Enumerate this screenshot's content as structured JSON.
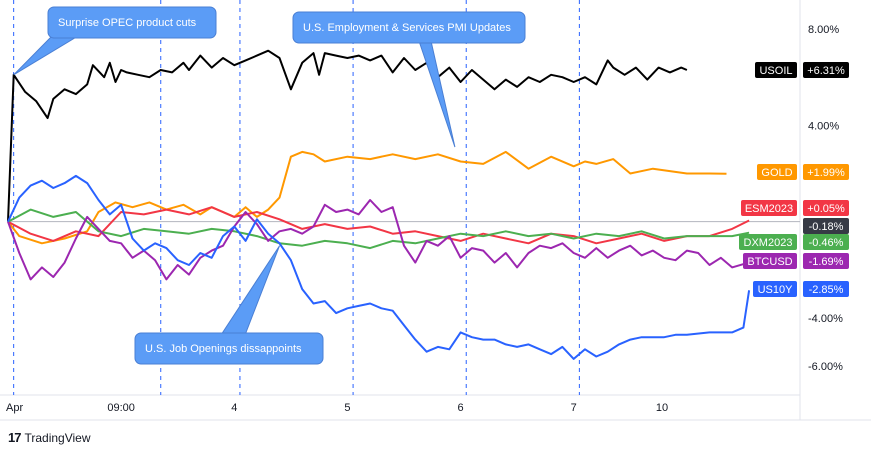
{
  "chart_data": {
    "type": "line",
    "x_axis": {
      "tick_labels": [
        "Apr",
        "09:00",
        "4",
        "5",
        "6",
        "7",
        "10"
      ],
      "range": [
        0,
        7
      ]
    },
    "y_axis": {
      "unit": "%",
      "tick_labels": [
        "8.00%",
        "4.00%",
        "-4.00%",
        "-6.00%"
      ],
      "tick_values": [
        8,
        4,
        -4,
        -6
      ],
      "range": [
        -7.2,
        9.0
      ]
    },
    "zero_line": true,
    "series": [
      {
        "name": "USOIL",
        "color": "#000000",
        "last_value": "+6.31%",
        "x": [
          0,
          0.05,
          0.15,
          0.25,
          0.35,
          0.4,
          0.5,
          0.6,
          0.7,
          0.75,
          0.85,
          0.9,
          0.95,
          1.0,
          1.05,
          1.15,
          1.25,
          1.35,
          1.45,
          1.5,
          1.55,
          1.6,
          1.7,
          1.8,
          1.9,
          2.0,
          2.1,
          2.2,
          2.3,
          2.4,
          2.5,
          2.6,
          2.7,
          2.75,
          2.8,
          2.9,
          3.0,
          3.1,
          3.2,
          3.3,
          3.4,
          3.5,
          3.6,
          3.7,
          3.8,
          3.9,
          4.0,
          4.1,
          4.2,
          4.3,
          4.4,
          4.5,
          4.6,
          4.7,
          4.8,
          4.9,
          5.0,
          5.1,
          5.2,
          5.3,
          5.35,
          5.45,
          5.55,
          5.65,
          5.75,
          5.85,
          5.95,
          6.0
        ],
        "y": [
          0,
          6.1,
          5.4,
          5.0,
          4.3,
          5.1,
          5.5,
          5.3,
          5.7,
          6.5,
          6.0,
          6.6,
          5.8,
          6.3,
          6.2,
          6.1,
          6.0,
          6.3,
          6.2,
          6.4,
          6.6,
          6.3,
          6.9,
          6.4,
          6.8,
          6.5,
          6.7,
          6.9,
          7.1,
          6.8,
          5.5,
          6.6,
          7.0,
          6.1,
          7.0,
          6.9,
          6.8,
          6.9,
          6.7,
          6.9,
          6.2,
          6.8,
          6.3,
          6.6,
          6.0,
          6.4,
          5.8,
          6.3,
          5.9,
          5.5,
          5.9,
          5.6,
          6.0,
          5.8,
          6.1,
          6.0,
          5.8,
          6.0,
          5.7,
          6.7,
          6.4,
          6.1,
          6.4,
          5.9,
          6.4,
          6.2,
          6.4,
          6.3
        ]
      },
      {
        "name": "GOLD",
        "color": "#FF9800",
        "last_value": "+1.99%",
        "x": [
          0,
          0.1,
          0.3,
          0.5,
          0.7,
          0.8,
          0.95,
          1.1,
          1.25,
          1.4,
          1.55,
          1.7,
          1.8,
          1.9,
          2.0,
          2.1,
          2.2,
          2.3,
          2.4,
          2.5,
          2.6,
          2.7,
          2.8,
          3.0,
          3.2,
          3.4,
          3.6,
          3.8,
          4.0,
          4.2,
          4.4,
          4.6,
          4.8,
          5.0,
          5.1,
          5.2,
          5.35,
          5.5,
          5.7,
          6.0,
          6.2,
          6.35
        ],
        "y": [
          0,
          -0.6,
          -0.9,
          -0.7,
          -0.4,
          0.4,
          0.8,
          0.6,
          0.8,
          0.5,
          0.7,
          0.3,
          0.6,
          0.4,
          0.2,
          0.6,
          0.2,
          0.5,
          1.0,
          2.7,
          2.9,
          2.8,
          2.5,
          2.7,
          2.6,
          2.8,
          2.6,
          2.8,
          2.5,
          2.4,
          2.9,
          2.2,
          2.7,
          2.3,
          2.5,
          2.4,
          2.6,
          2.0,
          2.2,
          2.0,
          2.0,
          1.99
        ]
      },
      {
        "name": "ESM2023",
        "color": "#F23645",
        "last_value": "+0.05%",
        "x": [
          0,
          0.2,
          0.4,
          0.6,
          0.8,
          1.0,
          1.2,
          1.4,
          1.6,
          1.8,
          2.0,
          2.2,
          2.4,
          2.6,
          2.8,
          3.0,
          3.2,
          3.4,
          3.6,
          3.8,
          4.0,
          4.2,
          4.4,
          4.6,
          4.8,
          5.0,
          5.2,
          5.4,
          5.6,
          5.8,
          6.0,
          6.2,
          6.4,
          6.55
        ],
        "y": [
          0,
          -0.5,
          -0.8,
          -0.4,
          -0.6,
          0.4,
          0.3,
          0.5,
          0.3,
          0.6,
          0.2,
          0.4,
          0.1,
          -0.3,
          -0.1,
          -0.3,
          -0.2,
          -0.5,
          -0.4,
          -0.6,
          -0.8,
          -0.5,
          -0.7,
          -0.9,
          -0.5,
          -0.6,
          -0.9,
          -0.7,
          -0.5,
          -0.8,
          -0.6,
          -0.6,
          -0.3,
          0.05
        ]
      },
      {
        "name": "DXM2023",
        "color": "#4CAF50",
        "last_value": "-0.46%",
        "x": [
          0,
          0.2,
          0.4,
          0.6,
          0.8,
          1.0,
          1.2,
          1.4,
          1.6,
          1.8,
          2.0,
          2.2,
          2.4,
          2.6,
          2.8,
          3.0,
          3.2,
          3.4,
          3.6,
          3.8,
          4.0,
          4.2,
          4.4,
          4.6,
          4.8,
          5.0,
          5.2,
          5.4,
          5.6,
          5.8,
          6.0,
          6.2,
          6.4,
          6.55
        ],
        "y": [
          0,
          0.5,
          0.2,
          0.4,
          -0.4,
          -0.6,
          -0.3,
          -0.4,
          -0.5,
          -0.3,
          -0.4,
          -0.6,
          -0.9,
          -1.0,
          -0.8,
          -0.9,
          -1.1,
          -0.8,
          -0.9,
          -0.7,
          -0.5,
          -0.6,
          -0.4,
          -0.6,
          -0.5,
          -0.7,
          -0.5,
          -0.6,
          -0.4,
          -0.7,
          -0.6,
          -0.6,
          -0.6,
          -0.46
        ]
      },
      {
        "name": "BTCUSD",
        "color": "#9C27B0",
        "last_value": "-1.69%",
        "x": [
          0,
          0.1,
          0.2,
          0.3,
          0.4,
          0.5,
          0.6,
          0.7,
          0.8,
          0.9,
          1.0,
          1.1,
          1.2,
          1.3,
          1.4,
          1.5,
          1.6,
          1.7,
          1.8,
          1.9,
          2.0,
          2.1,
          2.2,
          2.3,
          2.4,
          2.5,
          2.6,
          2.7,
          2.8,
          2.9,
          3.0,
          3.1,
          3.2,
          3.3,
          3.4,
          3.5,
          3.6,
          3.7,
          3.8,
          3.9,
          4.0,
          4.1,
          4.2,
          4.3,
          4.4,
          4.5,
          4.6,
          4.7,
          4.8,
          4.9,
          5.0,
          5.1,
          5.2,
          5.3,
          5.4,
          5.5,
          5.6,
          5.7,
          5.8,
          5.9,
          6.0,
          6.1,
          6.2,
          6.3,
          6.4,
          6.55
        ],
        "y": [
          0,
          -1.3,
          -2.4,
          -1.9,
          -2.3,
          -1.7,
          -0.7,
          0.2,
          -0.3,
          -0.8,
          -0.9,
          -1.5,
          -1.2,
          -1.6,
          -2.4,
          -1.8,
          -2.2,
          -1.5,
          -1.2,
          -1.0,
          -0.2,
          0.4,
          -0.1,
          -0.8,
          -0.4,
          -0.3,
          -0.5,
          -0.2,
          0.7,
          0.4,
          0.5,
          0.3,
          0.9,
          0.4,
          0.6,
          -1.0,
          -1.7,
          -0.8,
          -1.0,
          -0.6,
          -1.5,
          -1.1,
          -1.2,
          -1.7,
          -1.3,
          -1.9,
          -1.3,
          -1.0,
          -1.1,
          -0.9,
          -1.3,
          -1.5,
          -1.1,
          -1.5,
          -1.2,
          -1.0,
          -1.4,
          -1.2,
          -1.5,
          -1.6,
          -1.2,
          -1.3,
          -1.8,
          -1.5,
          -1.9,
          -1.69
        ]
      },
      {
        "name": "US10Y",
        "color": "#2962FF",
        "last_value": "-2.85%",
        "x": [
          0,
          0.1,
          0.2,
          0.3,
          0.4,
          0.5,
          0.6,
          0.7,
          0.8,
          0.9,
          1.0,
          1.1,
          1.2,
          1.3,
          1.4,
          1.5,
          1.6,
          1.7,
          1.8,
          1.9,
          2.0,
          2.1,
          2.2,
          2.3,
          2.4,
          2.5,
          2.6,
          2.7,
          2.8,
          2.9,
          3.0,
          3.1,
          3.2,
          3.3,
          3.4,
          3.5,
          3.6,
          3.7,
          3.8,
          3.9,
          4.0,
          4.1,
          4.2,
          4.3,
          4.4,
          4.5,
          4.6,
          4.7,
          4.8,
          4.9,
          5.0,
          5.1,
          5.2,
          5.3,
          5.4,
          5.5,
          5.6,
          5.7,
          5.8,
          5.9,
          6.0,
          6.2,
          6.4,
          6.5,
          6.55
        ],
        "y": [
          0,
          1.0,
          1.5,
          1.7,
          1.4,
          1.6,
          1.9,
          1.6,
          0.9,
          0.3,
          0.7,
          -0.7,
          -1.2,
          -0.9,
          -1.1,
          -1.6,
          -1.8,
          -1.3,
          -1.5,
          -0.6,
          -0.2,
          -0.8,
          0.1,
          -0.5,
          -0.9,
          -1.6,
          -2.8,
          -3.4,
          -3.3,
          -3.8,
          -3.6,
          -3.5,
          -3.4,
          -3.6,
          -3.7,
          -4.3,
          -4.9,
          -5.4,
          -5.2,
          -5.3,
          -4.6,
          -4.8,
          -4.9,
          -4.9,
          -5.1,
          -5.2,
          -5.1,
          -5.3,
          -5.5,
          -5.2,
          -5.7,
          -5.3,
          -5.6,
          -5.4,
          -5.1,
          -4.9,
          -4.8,
          -4.8,
          -4.8,
          -4.7,
          -4.7,
          -4.6,
          -4.6,
          -4.4,
          -2.85
        ]
      }
    ],
    "other_labels": [
      {
        "text": "-0.18%"
      }
    ],
    "event_lines_x": [
      0.05,
      1.35,
      2.05,
      3.05,
      4.05,
      5.05
    ],
    "annotations": [
      {
        "text": "Surprise OPEC product cuts",
        "x": 0.05,
        "y": 6.1
      },
      {
        "text": "U.S. Employment & Services PMI Updates",
        "x": 3.95,
        "y": 3.1
      },
      {
        "text": "U.S. Job Openings dissappoints",
        "x": 2.4,
        "y": -1.0
      }
    ]
  },
  "footer": {
    "brand_logo": "17",
    "brand_name": "TradingView"
  }
}
